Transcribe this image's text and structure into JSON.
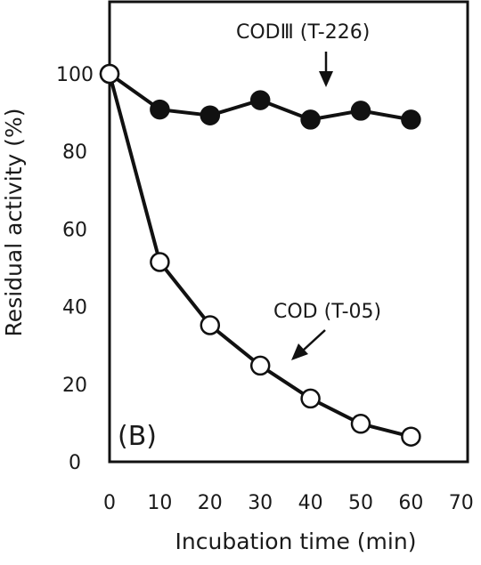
{
  "chart_data": {
    "type": "line",
    "panel_label": "(B)",
    "xlabel": "Incubation time (min)",
    "ylabel": "Residual activity (%)",
    "xlim": [
      0,
      70
    ],
    "ylim": [
      0,
      100
    ],
    "xticks": [
      0,
      10,
      20,
      30,
      40,
      50,
      60,
      70
    ],
    "yticks": [
      0,
      20,
      40,
      60,
      80,
      100
    ],
    "grid": false,
    "series": [
      {
        "name": "CODⅢ (T-226)",
        "marker": "filled-circle",
        "color": "#111111",
        "x": [
          0,
          10,
          20,
          30,
          40,
          50,
          60
        ],
        "y": [
          100,
          90.8,
          89.3,
          93.2,
          88.2,
          90.5,
          88.2
        ]
      },
      {
        "name": "COD (T-05)",
        "marker": "open-circle",
        "color": "#111111",
        "x": [
          0,
          10,
          20,
          30,
          40,
          50,
          60
        ],
        "y": [
          100,
          51.5,
          35.2,
          24.8,
          16.3,
          9.8,
          6.5
        ]
      }
    ],
    "annotations": [
      {
        "text": "CODⅢ (T-226)",
        "series": 0,
        "arrow_points_at_x": 42,
        "arrow_direction": "down"
      },
      {
        "text": "COD (T-05)",
        "series": 1,
        "arrow_points_at_x": 34,
        "arrow_direction": "down-left"
      }
    ]
  }
}
